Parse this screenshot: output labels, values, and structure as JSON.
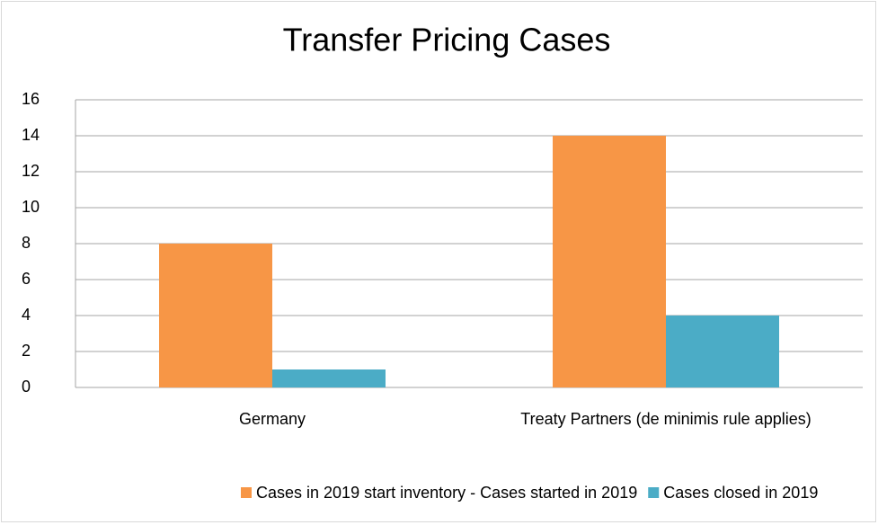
{
  "chart_data": {
    "type": "bar",
    "title": "Transfer Pricing Cases",
    "categories": [
      "Germany",
      "Treaty Partners (de minimis rule applies)"
    ],
    "series": [
      {
        "name": "Cases in 2019 start inventory - Cases started in 2019",
        "color": "#f79646",
        "values": [
          8,
          14
        ]
      },
      {
        "name": "Cases closed in 2019",
        "color": "#4bacc6",
        "values": [
          1,
          4
        ]
      }
    ],
    "ylim": [
      0,
      16
    ],
    "yticks": [
      0,
      2,
      4,
      6,
      8,
      10,
      12,
      14,
      16
    ],
    "grid": true,
    "legend": "bottom"
  }
}
